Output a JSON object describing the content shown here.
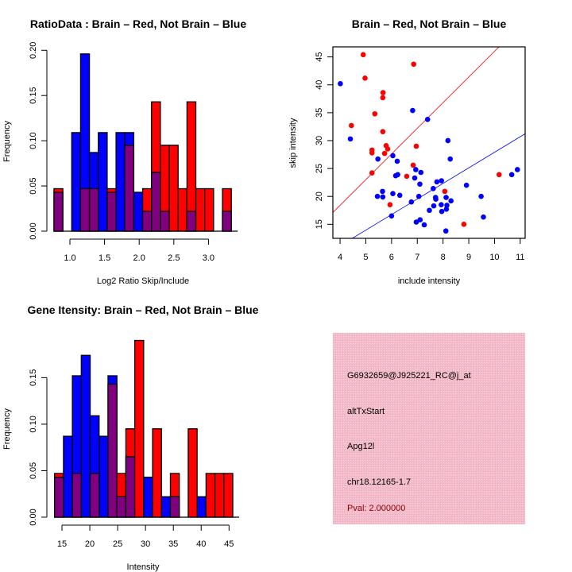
{
  "chart_data": [
    {
      "type": "bar",
      "title": "RatioData : Brain – Red, Not Brain – Blue",
      "xlabel": "Log2 Ratio Skip/Include",
      "ylabel": "Frequency",
      "series_names": [
        "Brain",
        "Not Brain"
      ],
      "colors": {
        "red": "#ff0000",
        "blue": "#0000ff",
        "overlap": "#800080"
      },
      "bin_start": 0.77,
      "bin_width": 0.128,
      "red_values": [
        0.047,
        0,
        0,
        0.047,
        0.047,
        0,
        0.047,
        0,
        0.095,
        0,
        0.047,
        0.143,
        0.095,
        0.095,
        0.047,
        0.143,
        0.047,
        0.047,
        0,
        0.047
      ],
      "blue_values": [
        0.043,
        0,
        0.109,
        0.196,
        0.087,
        0.109,
        0.043,
        0.109,
        0.109,
        0.043,
        0.022,
        0.065,
        0.022,
        0,
        0,
        0.022,
        0,
        0,
        0,
        0.022
      ],
      "x_ticks": [
        1.0,
        1.5,
        2.0,
        2.5,
        3.0
      ],
      "x_tick_labels": [
        "1.0",
        "1.5",
        "2.0",
        "2.5",
        "3.0"
      ],
      "y_ticks": [
        0,
        0.05,
        0.1,
        0.15,
        0.2
      ],
      "y_tick_labels": [
        "0.00",
        "0.05",
        "0.10",
        "0.15",
        "0.20"
      ],
      "ylim": [
        0,
        0.2
      ]
    },
    {
      "type": "scatter",
      "title": "Brain – Red, Not Brain – Blue",
      "xlabel": "include intensity",
      "ylabel": "skip intensity",
      "xlim": [
        3.72,
        11.19
      ],
      "ylim": [
        12.48,
        46.8
      ],
      "x_ticks": [
        4,
        5,
        6,
        7,
        8,
        9,
        10,
        11
      ],
      "x_tick_labels": [
        "4",
        "5",
        "6",
        "7",
        "8",
        "9",
        "10",
        "11"
      ],
      "y_ticks": [
        15,
        20,
        25,
        30,
        35,
        40,
        45
      ],
      "y_tick_labels": [
        "15",
        "20",
        "25",
        "30",
        "35",
        "40",
        "45"
      ],
      "series": [
        {
          "name": "Brain",
          "color": "#ff0000",
          "fit_slope": 4.6,
          "points": [
            [
              4.9,
              45.4
            ],
            [
              4.97,
              41.2
            ],
            [
              6.86,
              43.7
            ],
            [
              5.66,
              37.7
            ],
            [
              5.67,
              38.6
            ],
            [
              5.35,
              34.8
            ],
            [
              4.44,
              32.7
            ],
            [
              5.66,
              31.6
            ],
            [
              5.24,
              28.3
            ],
            [
              5.24,
              27.8
            ],
            [
              5.79,
              29.1
            ],
            [
              5.85,
              28.5
            ],
            [
              5.73,
              27.7
            ],
            [
              6.96,
              29.0
            ],
            [
              5.24,
              24.2
            ],
            [
              6.84,
              25.6
            ],
            [
              6.59,
              23.6
            ],
            [
              5.94,
              18.5
            ],
            [
              8.07,
              20.9
            ],
            [
              8.81,
              15.0
            ],
            [
              10.18,
              23.9
            ]
          ]
        },
        {
          "name": "Not Brain",
          "color": "#0000ff",
          "fit_slope": 2.79,
          "points": [
            [
              4.01,
              40.2
            ],
            [
              4.4,
              30.3
            ],
            [
              6.82,
              35.4
            ],
            [
              7.4,
              33.8
            ],
            [
              8.19,
              30.0
            ],
            [
              8.28,
              26.7
            ],
            [
              5.47,
              26.7
            ],
            [
              6.05,
              27.3
            ],
            [
              6.22,
              26.3
            ],
            [
              6.16,
              23.7
            ],
            [
              6.24,
              23.9
            ],
            [
              6.94,
              24.8
            ],
            [
              7.14,
              24.3
            ],
            [
              6.9,
              23.3
            ],
            [
              7.1,
              22.2
            ],
            [
              7.76,
              22.6
            ],
            [
              7.94,
              22.8
            ],
            [
              7.62,
              21.4
            ],
            [
              8.91,
              22.0
            ],
            [
              5.65,
              20.9
            ],
            [
              5.45,
              20.0
            ],
            [
              5.66,
              19.9
            ],
            [
              6.05,
              20.5
            ],
            [
              6.32,
              20.2
            ],
            [
              7.06,
              20.0
            ],
            [
              6.77,
              19.0
            ],
            [
              7.71,
              19.8
            ],
            [
              7.72,
              19.5
            ],
            [
              8.12,
              19.8
            ],
            [
              8.31,
              19.2
            ],
            [
              9.48,
              20.0
            ],
            [
              7.64,
              18.3
            ],
            [
              7.93,
              18.5
            ],
            [
              8.15,
              18.4
            ],
            [
              8.13,
              17.7
            ],
            [
              7.47,
              17.5
            ],
            [
              7.95,
              17.3
            ],
            [
              6.0,
              16.5
            ],
            [
              9.57,
              16.3
            ],
            [
              6.96,
              15.4
            ],
            [
              7.11,
              15.8
            ],
            [
              7.27,
              14.9
            ],
            [
              8.11,
              13.8
            ],
            [
              10.67,
              23.9
            ],
            [
              10.89,
              24.8
            ]
          ]
        }
      ]
    },
    {
      "type": "bar",
      "title": "Gene Itensity: Brain – Red, Not Brain – Blue",
      "xlabel": "Intensity",
      "ylabel": "Frequency",
      "series_names": [
        "Brain",
        "Not Brain"
      ],
      "colors": {
        "red": "#ff0000",
        "blue": "#0000ff",
        "overlap": "#800080"
      },
      "bin_start": 13.67,
      "bin_width": 1.6,
      "red_values": [
        0.047,
        0,
        0.047,
        0,
        0.047,
        0,
        0.143,
        0.047,
        0.095,
        0.19,
        0,
        0.095,
        0,
        0.047,
        0,
        0.095,
        0,
        0.047,
        0.047,
        0.047
      ],
      "blue_values": [
        0.043,
        0.087,
        0.152,
        0.174,
        0.109,
        0.087,
        0.152,
        0.022,
        0.065,
        0,
        0.043,
        0,
        0.022,
        0.022,
        0,
        0,
        0.022,
        0,
        0,
        0
      ],
      "x_ticks": [
        15,
        20,
        25,
        30,
        35,
        40,
        45
      ],
      "x_tick_labels": [
        "15",
        "20",
        "25",
        "30",
        "35",
        "40",
        "45"
      ],
      "y_ticks": [
        0,
        0.05,
        0.1,
        0.15
      ],
      "y_tick_labels": [
        "0.00",
        "0.05",
        "0.10",
        "0.15"
      ],
      "ylim": [
        0,
        0.19
      ]
    }
  ],
  "info_box": {
    "probe_id": "G6932659@J925221_RC@j_at",
    "event_type": "altTxStart",
    "gene": "Apg12l",
    "location": "chr18.12165-1.7",
    "pval": "Pval: 2.000000",
    "background_color": "#f4bccb",
    "pval_color": "#8b0000"
  }
}
